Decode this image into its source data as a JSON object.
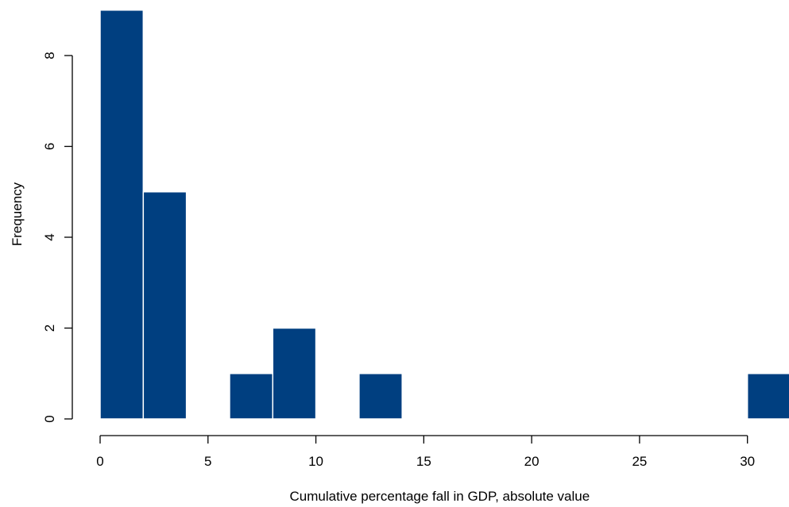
{
  "chart_data": {
    "type": "bar",
    "subtype": "histogram",
    "title": "",
    "xlabel": "Cumulative percentage fall in GDP, absolute value",
    "ylabel": "Frequency",
    "bin_width": 2,
    "bins": [
      {
        "start": 0,
        "end": 2,
        "count": 9
      },
      {
        "start": 2,
        "end": 4,
        "count": 5
      },
      {
        "start": 6,
        "end": 8,
        "count": 1
      },
      {
        "start": 8,
        "end": 10,
        "count": 2
      },
      {
        "start": 12,
        "end": 14,
        "count": 1
      },
      {
        "start": 30,
        "end": 32,
        "count": 1
      }
    ],
    "xlim": [
      0,
      32
    ],
    "ylim": [
      0,
      9
    ],
    "x_ticks": [
      0,
      5,
      10,
      15,
      20,
      25,
      30
    ],
    "x_tick_labels": [
      "0",
      "5",
      "10",
      "15",
      "20",
      "25",
      "30"
    ],
    "y_ticks": [
      0,
      2,
      4,
      6,
      8
    ],
    "y_tick_labels": [
      "0",
      "2",
      "4",
      "6",
      "8"
    ],
    "grid": false,
    "legend": "none",
    "colors": {
      "bar_fill": "#003f80",
      "bar_edge": "#ffffff",
      "axis": "#000000",
      "text": "#000000"
    }
  }
}
